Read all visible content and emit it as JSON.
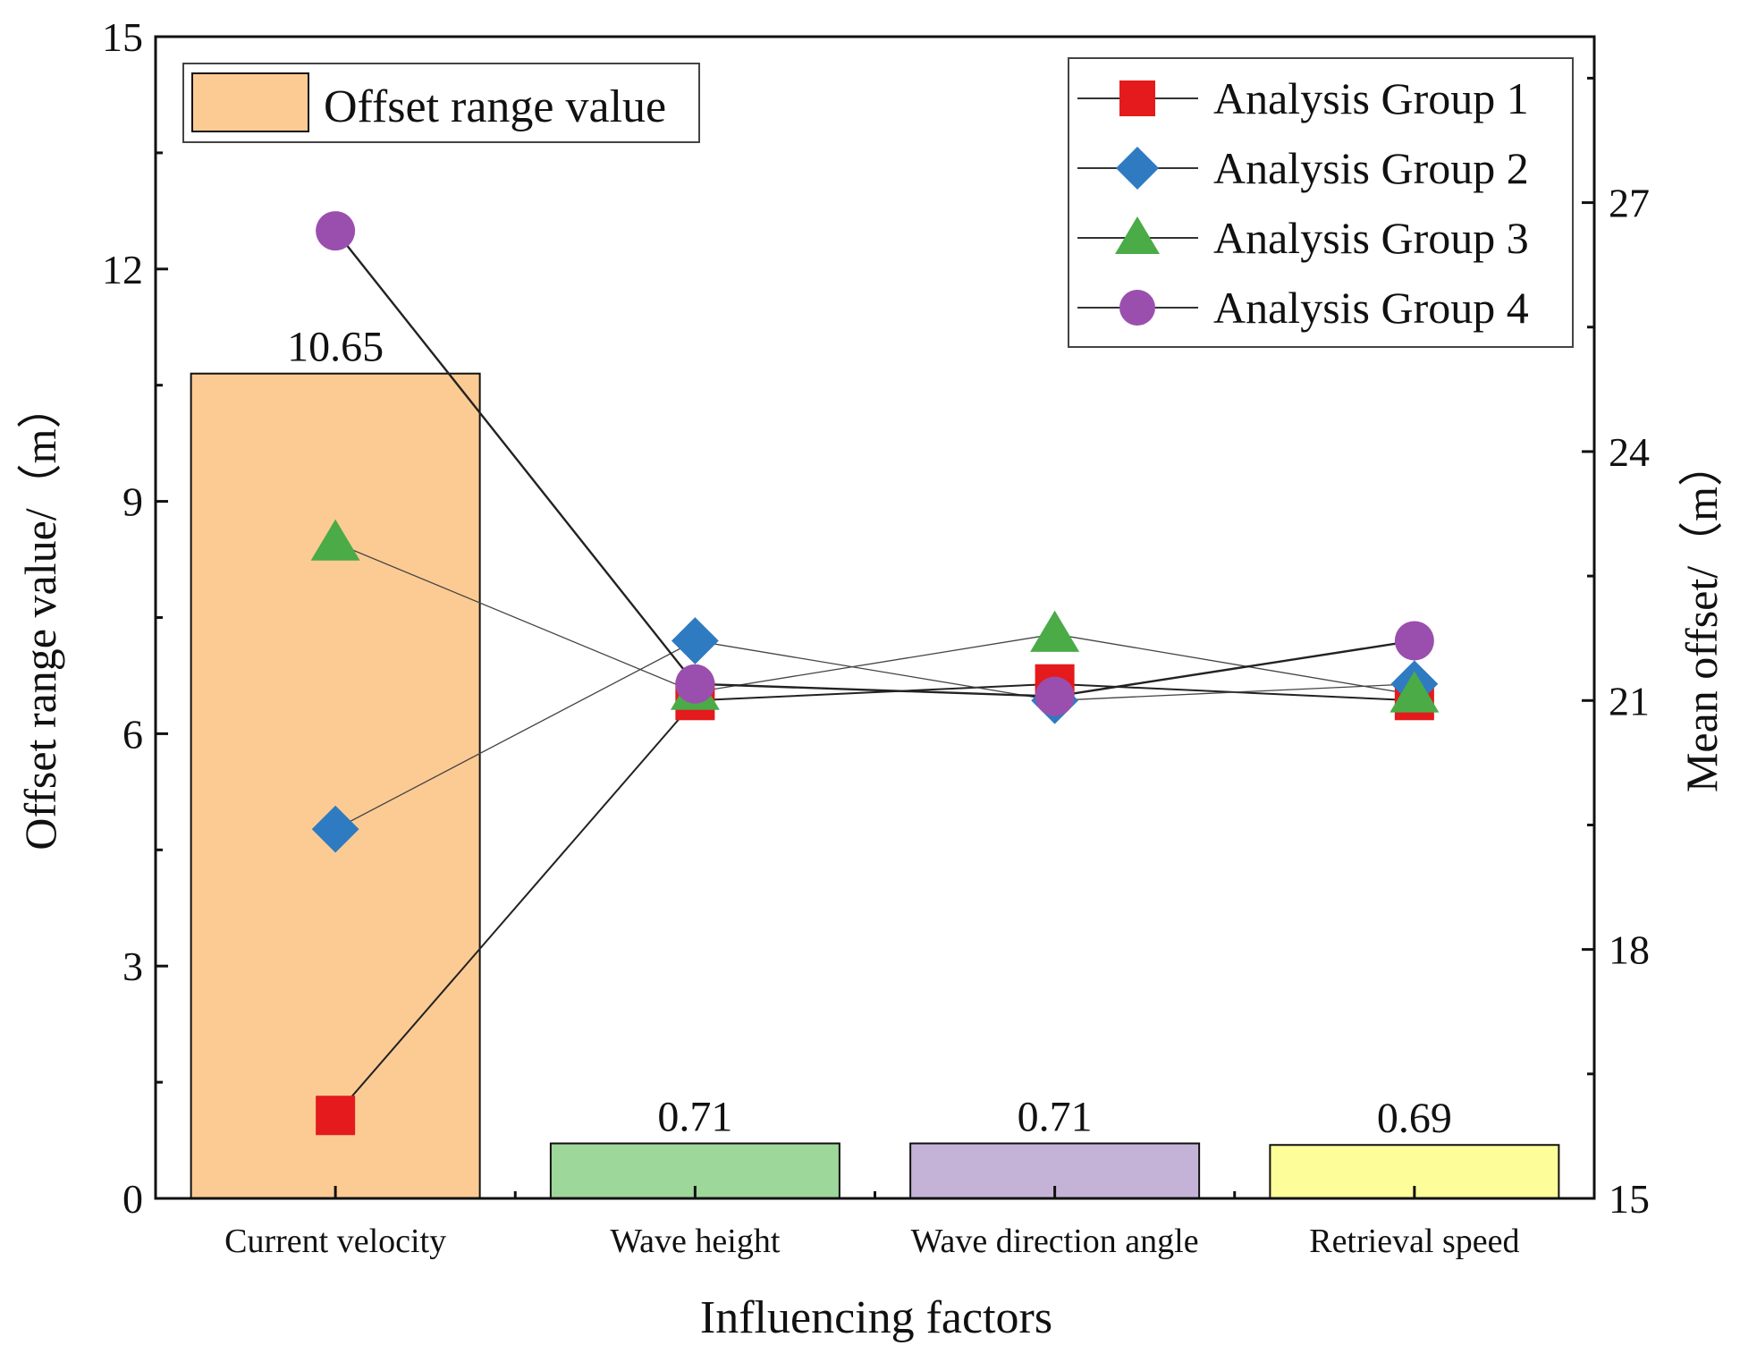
{
  "chart_data": {
    "type": "bar+line",
    "xlabel": "Influencing factors",
    "ylabel_left": "Offset range value/（m）",
    "ylabel_right": "Mean offset/（m）",
    "categories": [
      "Current velocity",
      "Wave height",
      "Wave direction angle",
      "Retrieval speed"
    ],
    "ylim_left": [
      0,
      15
    ],
    "yticks_left": [
      "0",
      "3",
      "6",
      "9",
      "12",
      "15"
    ],
    "ylim_right": [
      15,
      29
    ],
    "yticks_right": [
      "15",
      "18",
      "21",
      "24",
      "27"
    ],
    "bars": {
      "name": "Offset range value",
      "values": [
        10.65,
        0.71,
        0.71,
        0.69
      ],
      "labels": [
        "10.65",
        "0.71",
        "0.71",
        "0.69"
      ],
      "colors": [
        "#fccb93",
        "#9dd79a",
        "#c5b3d7",
        "#fdfd9a"
      ]
    },
    "series": [
      {
        "name": "Analysis Group 1",
        "marker": "square",
        "color": "#e41a1c",
        "values": [
          16.0,
          21.0,
          21.2,
          21.0
        ]
      },
      {
        "name": "Analysis Group 2",
        "marker": "diamond",
        "color": "#2f7bc1",
        "values": [
          19.45,
          21.72,
          21.0,
          21.2
        ]
      },
      {
        "name": "Analysis Group 3",
        "marker": "triangle",
        "color": "#4aab47",
        "values": [
          22.9,
          21.1,
          21.8,
          21.07
        ]
      },
      {
        "name": "Analysis Group 4",
        "marker": "circle",
        "color": "#9a4fae",
        "values": [
          26.66,
          21.2,
          21.05,
          21.72
        ]
      }
    ],
    "legend_bar_placement": "top-left",
    "legend_lines_placement": "top-right",
    "grid": false
  }
}
